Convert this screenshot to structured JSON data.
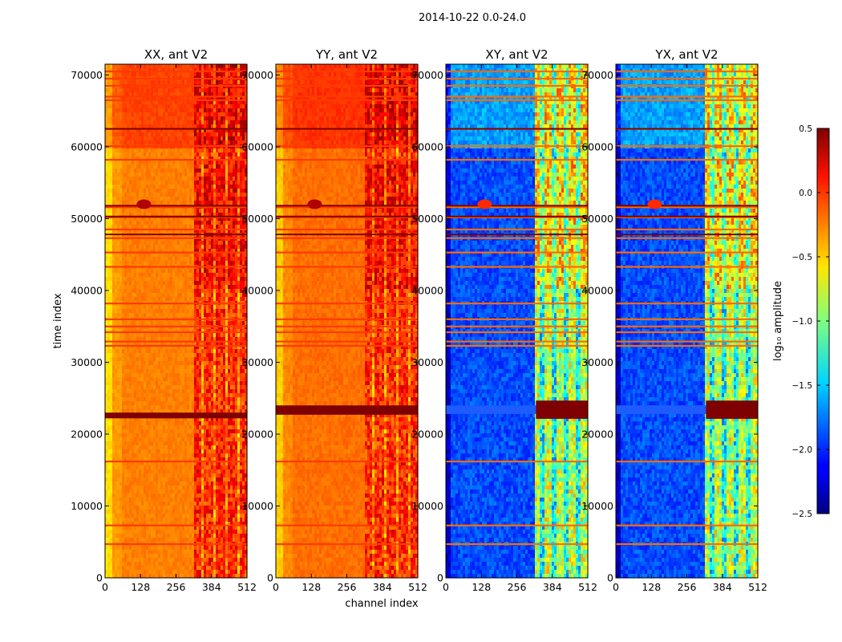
{
  "chart_data": {
    "type": "heatmap",
    "suptitle": "2014-10-22 0.0-24.0",
    "xlabel": "channel index",
    "ylabel": "time index",
    "xlim": [
      0,
      512
    ],
    "ylim": [
      0,
      71500
    ],
    "x_ticks": [
      "0",
      "128",
      "256",
      "384",
      "512"
    ],
    "y_ticks": [
      "0",
      "10000",
      "20000",
      "30000",
      "40000",
      "50000",
      "60000",
      "70000"
    ],
    "panels": [
      {
        "title": "XX, ant V2",
        "polarization": "XX",
        "mean_log10_amplitude": -0.25,
        "broad_bad_band": [
          22200,
          23000
        ]
      },
      {
        "title": "YY, ant V2",
        "polarization": "YY",
        "mean_log10_amplitude": -0.2,
        "broad_bad_band": [
          22700,
          24000
        ]
      },
      {
        "title": "XY, ant V2",
        "polarization": "XY",
        "mean_log10_amplitude": -1.9,
        "broad_bad_band": [
          22800,
          24000
        ]
      },
      {
        "title": "YX, ant V2",
        "polarization": "YX",
        "mean_log10_amplitude": -1.9,
        "broad_bad_band": [
          22800,
          24000
        ]
      }
    ],
    "active_channel_range": [
      325,
      512
    ],
    "rfi_rows": [
      4700,
      7300,
      16200,
      32300,
      32900,
      34200,
      35000,
      36000,
      38200,
      43300,
      45300,
      47300,
      48500,
      50200,
      51600,
      58200,
      60100,
      62500,
      66500,
      67000,
      68500,
      69500,
      70500
    ],
    "colorbar": {
      "label": "log₁₀ amplitude",
      "range": [
        -2.5,
        0.5
      ],
      "ticks": [
        "0.5",
        "0.0",
        "−0.5",
        "−1.0",
        "−1.5",
        "−2.0",
        "−2.5"
      ],
      "colormap": "jet"
    }
  }
}
